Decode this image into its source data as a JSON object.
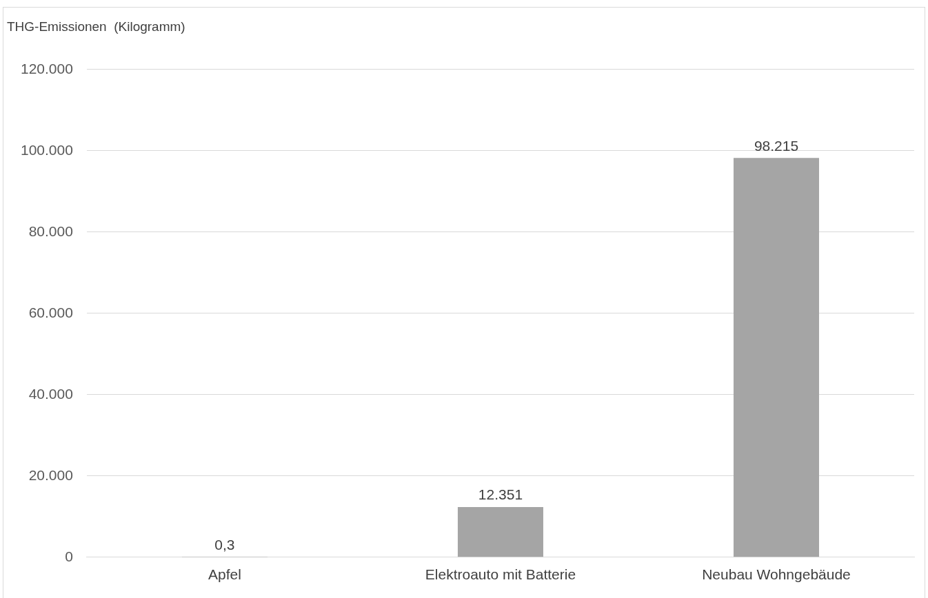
{
  "chart_data": {
    "type": "bar",
    "ylabel": "THG-Emissionen  (Kilogramm)",
    "categories": [
      "Apfel",
      "Elektroauto mit Batterie",
      "Neubau Wohngebäude"
    ],
    "values": [
      0.3,
      12351,
      98215
    ],
    "color": "#a5a5a5",
    "value_labels": [
      "0,3",
      "12.351",
      "98.215"
    ],
    "ylim": [
      0,
      120000
    ],
    "yticks": [
      {
        "value": 0,
        "label": "0"
      },
      {
        "value": 20000,
        "label": "20.000"
      },
      {
        "value": 40000,
        "label": "40.000"
      },
      {
        "value": 60000,
        "label": "60.000"
      },
      {
        "value": 80000,
        "label": "80.000"
      },
      {
        "value": 100000,
        "label": "100.000"
      },
      {
        "value": 120000,
        "label": "120.000"
      }
    ],
    "grid": "y",
    "legend": false
  }
}
